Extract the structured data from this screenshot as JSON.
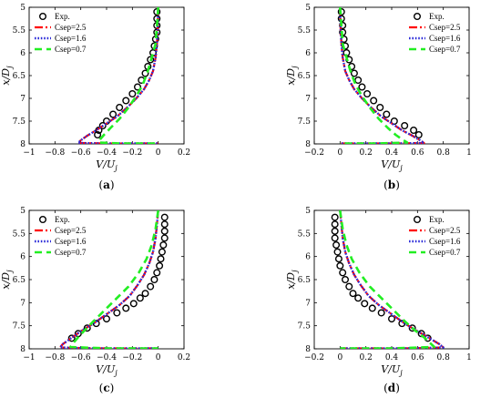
{
  "chart_data": [
    {
      "type": "line",
      "caption": "(a)",
      "xlabel": "V/U_j",
      "ylabel": "x/D_j",
      "xlim": [
        -1,
        0.2
      ],
      "ylim": [
        5,
        8
      ],
      "y_reversed": true,
      "xticks": [
        -1,
        -0.8,
        -0.6,
        -0.4,
        -0.2,
        0,
        0.2
      ],
      "xtick_labels": [
        "−1",
        "−0.8",
        "−0.6",
        "−0.4",
        "−0.2",
        "0",
        "0.2"
      ],
      "yticks": [
        5,
        5.5,
        6,
        6.5,
        7,
        7.5,
        8
      ],
      "ytick_labels": [
        "5",
        "5.5",
        "6",
        "6.5",
        "7",
        "7.5",
        "8"
      ],
      "legend": "top-left",
      "series": [
        {
          "name": "Exp.",
          "style": "markers",
          "x": [
            -0.01,
            -0.01,
            -0.01,
            -0.01,
            -0.02,
            -0.03,
            -0.04,
            -0.06,
            -0.08,
            -0.1,
            -0.13,
            -0.16,
            -0.2,
            -0.25,
            -0.3,
            -0.35,
            -0.4,
            -0.43,
            -0.46,
            -0.47
          ],
          "y": [
            5.1,
            5.25,
            5.4,
            5.55,
            5.7,
            5.85,
            6,
            6.15,
            6.3,
            6.45,
            6.6,
            6.75,
            6.9,
            7.05,
            7.2,
            7.35,
            7.5,
            7.6,
            7.7,
            7.8
          ]
        },
        {
          "name": "Csep=2.5",
          "style": "dashdot",
          "x": [
            0,
            -0.005,
            -0.01,
            -0.02,
            -0.04,
            -0.07,
            -0.11,
            -0.17,
            -0.24,
            -0.32,
            -0.4,
            -0.48,
            -0.55,
            -0.6,
            -0.62,
            -0.4,
            -0.1,
            0
          ],
          "y": [
            5,
            5.5,
            5.8,
            6.1,
            6.4,
            6.6,
            6.8,
            7,
            7.2,
            7.4,
            7.55,
            7.7,
            7.82,
            7.92,
            7.98,
            7.99,
            7.99,
            7.99
          ]
        },
        {
          "name": "Csep=1.6",
          "style": "dotted",
          "x": [
            0,
            -0.005,
            -0.01,
            -0.02,
            -0.04,
            -0.07,
            -0.11,
            -0.17,
            -0.24,
            -0.32,
            -0.4,
            -0.48,
            -0.55,
            -0.6,
            -0.62,
            -0.4,
            -0.1,
            0
          ],
          "y": [
            5,
            5.5,
            5.8,
            6.1,
            6.4,
            6.6,
            6.8,
            7,
            7.2,
            7.4,
            7.55,
            7.7,
            7.82,
            7.92,
            7.98,
            7.99,
            7.99,
            7.99
          ]
        },
        {
          "name": "Csep=0.7",
          "style": "dashed",
          "x": [
            0,
            -0.01,
            -0.02,
            -0.05,
            -0.08,
            -0.12,
            -0.17,
            -0.23,
            -0.3,
            -0.37,
            -0.42,
            -0.45,
            -0.46,
            -0.3,
            -0.1,
            0
          ],
          "y": [
            5,
            5.4,
            5.8,
            6.1,
            6.4,
            6.7,
            6.95,
            7.2,
            7.45,
            7.65,
            7.8,
            7.9,
            7.97,
            7.99,
            7.99,
            7.99
          ]
        }
      ]
    },
    {
      "type": "line",
      "caption": "(b)",
      "xlabel": "V/U_j",
      "ylabel": "x/D_j",
      "xlim": [
        -0.2,
        1
      ],
      "ylim": [
        5,
        8
      ],
      "y_reversed": true,
      "xticks": [
        -0.2,
        0,
        0.2,
        0.4,
        0.6,
        0.8,
        1
      ],
      "xtick_labels": [
        "−0.2",
        "0",
        "0.2",
        "0.4",
        "0.6",
        "0.8",
        "1"
      ],
      "yticks": [
        5,
        5.5,
        6,
        6.5,
        7,
        7.5,
        8
      ],
      "ytick_labels": [
        "5",
        "5.5",
        "6",
        "6.5",
        "7",
        "7.5",
        "8"
      ],
      "legend": "top-right",
      "series": [
        {
          "name": "Exp.",
          "style": "markers",
          "x": [
            0.01,
            0.01,
            0.02,
            0.02,
            0.03,
            0.04,
            0.05,
            0.07,
            0.09,
            0.11,
            0.14,
            0.17,
            0.21,
            0.26,
            0.31,
            0.36,
            0.42,
            0.5,
            0.57,
            0.61
          ],
          "y": [
            5.1,
            5.25,
            5.4,
            5.55,
            5.7,
            5.85,
            6,
            6.15,
            6.3,
            6.45,
            6.6,
            6.75,
            6.9,
            7.05,
            7.2,
            7.35,
            7.5,
            7.6,
            7.7,
            7.8
          ]
        },
        {
          "name": "Csep=2.5",
          "style": "dashdot",
          "x": [
            0,
            0.005,
            0.01,
            0.02,
            0.04,
            0.07,
            0.11,
            0.17,
            0.24,
            0.32,
            0.4,
            0.48,
            0.56,
            0.62,
            0.65,
            0.4,
            0.1,
            0
          ],
          "y": [
            5,
            5.5,
            5.8,
            6.1,
            6.4,
            6.6,
            6.8,
            7,
            7.2,
            7.4,
            7.55,
            7.7,
            7.82,
            7.92,
            7.98,
            7.99,
            7.99,
            7.99
          ]
        },
        {
          "name": "Csep=1.6",
          "style": "dotted",
          "x": [
            0,
            0.005,
            0.01,
            0.02,
            0.04,
            0.07,
            0.11,
            0.17,
            0.24,
            0.32,
            0.4,
            0.48,
            0.56,
            0.62,
            0.65,
            0.4,
            0.1,
            0
          ],
          "y": [
            5,
            5.5,
            5.8,
            6.1,
            6.4,
            6.6,
            6.8,
            7,
            7.2,
            7.4,
            7.55,
            7.7,
            7.82,
            7.92,
            7.98,
            7.99,
            7.99,
            7.99
          ]
        },
        {
          "name": "Csep=0.7",
          "style": "dashed",
          "x": [
            0,
            0.01,
            0.02,
            0.05,
            0.08,
            0.12,
            0.17,
            0.23,
            0.3,
            0.37,
            0.43,
            0.48,
            0.52,
            0.3,
            0.1,
            0
          ],
          "y": [
            5,
            5.4,
            5.8,
            6.1,
            6.4,
            6.7,
            6.95,
            7.2,
            7.45,
            7.65,
            7.8,
            7.9,
            7.97,
            7.99,
            7.99,
            7.99
          ]
        }
      ]
    },
    {
      "type": "line",
      "caption": "(c)",
      "xlabel": "V/U_j",
      "ylabel": "x/D_j",
      "xlim": [
        -1,
        0.2
      ],
      "ylim": [
        5,
        8
      ],
      "y_reversed": true,
      "xticks": [
        -1,
        -0.8,
        -0.6,
        -0.4,
        -0.2,
        0,
        0.2
      ],
      "xtick_labels": [
        "−1",
        "−0.8",
        "−0.6",
        "−0.4",
        "−0.2",
        "0",
        "0.2"
      ],
      "yticks": [
        5,
        5.5,
        6,
        6.5,
        7,
        7.5,
        8
      ],
      "ytick_labels": [
        "5",
        "5.5",
        "6",
        "6.5",
        "7",
        "7.5",
        "8"
      ],
      "legend": "top-left",
      "series": [
        {
          "name": "Exp.",
          "style": "markers",
          "x": [
            0.05,
            0.05,
            0.05,
            0.05,
            0.04,
            0.03,
            0.02,
            0.01,
            -0.01,
            -0.03,
            -0.06,
            -0.1,
            -0.14,
            -0.19,
            -0.25,
            -0.32,
            -0.4,
            -0.48,
            -0.55,
            -0.62,
            -0.67
          ],
          "y": [
            5.15,
            5.3,
            5.45,
            5.6,
            5.75,
            5.9,
            6.05,
            6.2,
            6.35,
            6.5,
            6.65,
            6.8,
            6.9,
            7.02,
            7.12,
            7.22,
            7.35,
            7.45,
            7.55,
            7.67,
            7.77
          ]
        },
        {
          "name": "Csep=2.5",
          "style": "dashdot",
          "x": [
            0,
            -0.01,
            -0.02,
            -0.04,
            -0.07,
            -0.11,
            -0.16,
            -0.22,
            -0.3,
            -0.4,
            -0.5,
            -0.6,
            -0.68,
            -0.74,
            -0.76,
            -0.5,
            -0.1,
            0
          ],
          "y": [
            5,
            5.3,
            5.6,
            5.9,
            6.15,
            6.4,
            6.62,
            6.85,
            7.05,
            7.25,
            7.45,
            7.62,
            7.78,
            7.9,
            7.97,
            7.99,
            7.99,
            7.99
          ]
        },
        {
          "name": "Csep=1.6",
          "style": "dotted",
          "x": [
            0,
            -0.01,
            -0.02,
            -0.04,
            -0.07,
            -0.11,
            -0.16,
            -0.22,
            -0.3,
            -0.4,
            -0.5,
            -0.6,
            -0.68,
            -0.74,
            -0.76,
            -0.5,
            -0.1,
            0
          ],
          "y": [
            5,
            5.3,
            5.6,
            5.9,
            6.15,
            6.4,
            6.62,
            6.85,
            7.05,
            7.25,
            7.45,
            7.62,
            7.78,
            7.9,
            7.97,
            7.99,
            7.99,
            7.99
          ]
        },
        {
          "name": "Csep=0.7",
          "style": "dashed",
          "x": [
            0,
            -0.02,
            -0.05,
            -0.09,
            -0.15,
            -0.23,
            -0.32,
            -0.41,
            -0.5,
            -0.57,
            -0.62,
            -0.66,
            -0.68,
            -0.4,
            -0.1,
            0
          ],
          "y": [
            5,
            5.4,
            5.75,
            6.05,
            6.35,
            6.65,
            6.9,
            7.15,
            7.4,
            7.6,
            7.75,
            7.88,
            7.96,
            7.99,
            7.99,
            7.99
          ]
        }
      ]
    },
    {
      "type": "line",
      "caption": "(d)",
      "xlabel": "V/U_j",
      "ylabel": "x/D_j",
      "xlim": [
        -0.2,
        1
      ],
      "ylim": [
        5,
        8
      ],
      "y_reversed": true,
      "xticks": [
        -0.2,
        0,
        0.2,
        0.4,
        0.6,
        0.8,
        1
      ],
      "xtick_labels": [
        "−0.2",
        "0",
        "0.2",
        "0.4",
        "0.6",
        "0.8",
        "1"
      ],
      "yticks": [
        5,
        5.5,
        6,
        6.5,
        7,
        7.5,
        8
      ],
      "ytick_labels": [
        "5",
        "5.5",
        "6",
        "6.5",
        "7",
        "7.5",
        "8"
      ],
      "legend": "top-right",
      "series": [
        {
          "name": "Exp.",
          "style": "markers",
          "x": [
            -0.04,
            -0.04,
            -0.04,
            -0.04,
            -0.03,
            -0.02,
            -0.01,
            0,
            0.02,
            0.04,
            0.07,
            0.1,
            0.14,
            0.19,
            0.25,
            0.32,
            0.4,
            0.48,
            0.56,
            0.63,
            0.68
          ],
          "y": [
            5.15,
            5.3,
            5.45,
            5.6,
            5.75,
            5.9,
            6.05,
            6.2,
            6.35,
            6.5,
            6.65,
            6.8,
            6.9,
            7.02,
            7.12,
            7.22,
            7.35,
            7.45,
            7.55,
            7.67,
            7.77
          ]
        },
        {
          "name": "Csep=2.5",
          "style": "dashdot",
          "x": [
            0,
            0.01,
            0.02,
            0.04,
            0.07,
            0.11,
            0.16,
            0.22,
            0.3,
            0.4,
            0.5,
            0.6,
            0.7,
            0.77,
            0.8,
            0.5,
            0.1,
            0
          ],
          "y": [
            5,
            5.3,
            5.6,
            5.9,
            6.15,
            6.4,
            6.62,
            6.85,
            7.05,
            7.25,
            7.45,
            7.62,
            7.78,
            7.9,
            7.97,
            7.99,
            7.99,
            7.99
          ]
        },
        {
          "name": "Csep=1.6",
          "style": "dotted",
          "x": [
            0,
            0.01,
            0.02,
            0.04,
            0.07,
            0.11,
            0.16,
            0.22,
            0.3,
            0.4,
            0.5,
            0.6,
            0.7,
            0.77,
            0.8,
            0.5,
            0.1,
            0
          ],
          "y": [
            5,
            5.3,
            5.6,
            5.9,
            6.15,
            6.4,
            6.62,
            6.85,
            7.05,
            7.25,
            7.45,
            7.62,
            7.78,
            7.9,
            7.97,
            7.99,
            7.99,
            7.99
          ]
        },
        {
          "name": "Csep=0.7",
          "style": "dashed",
          "x": [
            0,
            0.02,
            0.05,
            0.09,
            0.15,
            0.23,
            0.32,
            0.41,
            0.5,
            0.58,
            0.65,
            0.7,
            0.73,
            0.4,
            0.1,
            0
          ],
          "y": [
            5,
            5.4,
            5.75,
            6.05,
            6.35,
            6.65,
            6.9,
            7.15,
            7.4,
            7.6,
            7.75,
            7.88,
            7.96,
            7.99,
            7.99,
            7.99
          ]
        }
      ]
    }
  ],
  "series_colors": {
    "Exp.": "#000000",
    "Csep=2.5": "#ff0000",
    "Csep=1.6": "#2b2bd8",
    "Csep=0.7": "#22ee22"
  }
}
